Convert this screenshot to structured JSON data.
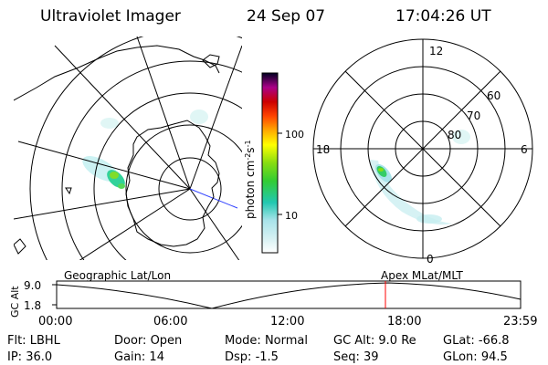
{
  "header": {
    "title": "Ultraviolet Imager",
    "date": "24 Sep 07",
    "time": "17:04:26 UT"
  },
  "left_map": {
    "label": "Geographic Lat/Lon"
  },
  "right_map": {
    "label": "Apex MLat/MLT",
    "mlt_labels": {
      "top": "12",
      "left": "18",
      "right": "6",
      "bottom": "0"
    },
    "lat_labels": [
      "60",
      "70",
      "80"
    ]
  },
  "colorbar": {
    "unit_label": "photon cm",
    "unit_sup1": "-2",
    "unit_mid": "s",
    "unit_sup2": "-1",
    "ticks": [
      "100",
      "10"
    ]
  },
  "altitude_plot": {
    "ylabel": "GC Alt",
    "y_ticks": [
      "9.0",
      "1.8"
    ],
    "x_ticks": [
      "00:00",
      "06:00",
      "12:00",
      "18:00",
      "23:59"
    ],
    "marker_color": "#ff0000"
  },
  "footer": {
    "r1": [
      {
        "label": "Flt:",
        "value": "LBHL"
      },
      {
        "label": "Door:",
        "value": "Open"
      },
      {
        "label": "Mode:",
        "value": "Normal"
      },
      {
        "label": "GC Alt:",
        "value": "9.0 Re"
      },
      {
        "label": "GLat:",
        "value": "-66.8"
      }
    ],
    "r2": [
      {
        "label": "IP:",
        "value": "36.0"
      },
      {
        "label": "Gain:",
        "value": "14"
      },
      {
        "label": "Dsp:",
        "value": "-1.5"
      },
      {
        "label": "Seq:",
        "value": "39"
      },
      {
        "label": "GLon:",
        "value": "94.5"
      }
    ]
  }
}
